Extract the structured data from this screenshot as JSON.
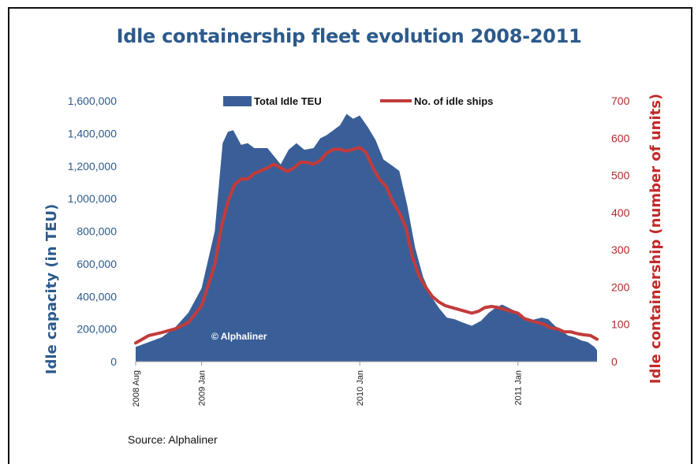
{
  "chart_data": {
    "type": "area",
    "title": "Idle containership fleet evolution 2008-2011",
    "source": "Source: Alphaliner",
    "watermark": "© Alphaliner",
    "ylabel_left": "Idle capacity (in TEU)",
    "ylabel_right": "Idle containership (number of units)",
    "ylim_left": [
      0,
      1600000
    ],
    "ylim_right": [
      0,
      700
    ],
    "yticks_left": [
      "0",
      "200,000",
      "400,000",
      "600,000",
      "800,000",
      "1,000,000",
      "1,200,000",
      "1,400,000",
      "1,600,000"
    ],
    "yticks_right": [
      "0",
      "100",
      "200",
      "300",
      "400",
      "500",
      "600",
      "700"
    ],
    "x_ticks": [
      {
        "label": "2008 Aug",
        "t": 0
      },
      {
        "label": "2009 Jan",
        "t": 5
      },
      {
        "label": "2010 Jan",
        "t": 17
      },
      {
        "label": "2011 Jan",
        "t": 29
      }
    ],
    "x_range": [
      0,
      35
    ],
    "legend": {
      "placement": "top"
    },
    "series": [
      {
        "name": "Total Idle TEU",
        "kind": "area",
        "color": "#3a5f98",
        "points": [
          [
            0,
            90000
          ],
          [
            1,
            120000
          ],
          [
            2,
            150000
          ],
          [
            3,
            210000
          ],
          [
            4,
            300000
          ],
          [
            5,
            450000
          ],
          [
            6,
            800000
          ],
          [
            6.6,
            1340000
          ],
          [
            7,
            1410000
          ],
          [
            7.4,
            1420000
          ],
          [
            8,
            1330000
          ],
          [
            8.5,
            1340000
          ],
          [
            9,
            1310000
          ],
          [
            10,
            1310000
          ],
          [
            10.5,
            1260000
          ],
          [
            11,
            1210000
          ],
          [
            11.6,
            1300000
          ],
          [
            12.2,
            1340000
          ],
          [
            12.8,
            1300000
          ],
          [
            13.5,
            1310000
          ],
          [
            14,
            1370000
          ],
          [
            14.5,
            1390000
          ],
          [
            15,
            1420000
          ],
          [
            15.5,
            1450000
          ],
          [
            16,
            1520000
          ],
          [
            16.5,
            1490000
          ],
          [
            17,
            1510000
          ],
          [
            17.6,
            1440000
          ],
          [
            18.2,
            1360000
          ],
          [
            18.8,
            1240000
          ],
          [
            19.5,
            1200000
          ],
          [
            20,
            1170000
          ],
          [
            20.6,
            960000
          ],
          [
            21.2,
            700000
          ],
          [
            21.8,
            520000
          ],
          [
            22.5,
            390000
          ],
          [
            23,
            330000
          ],
          [
            23.6,
            270000
          ],
          [
            24.2,
            260000
          ],
          [
            24.8,
            240000
          ],
          [
            25.5,
            220000
          ],
          [
            26.2,
            250000
          ],
          [
            26.8,
            300000
          ],
          [
            27.3,
            330000
          ],
          [
            27.8,
            350000
          ],
          [
            28.3,
            330000
          ],
          [
            28.8,
            310000
          ],
          [
            29.3,
            280000
          ],
          [
            29.8,
            250000
          ],
          [
            30.3,
            260000
          ],
          [
            30.8,
            270000
          ],
          [
            31.3,
            260000
          ],
          [
            31.8,
            220000
          ],
          [
            32.3,
            190000
          ],
          [
            32.8,
            160000
          ],
          [
            33.3,
            150000
          ],
          [
            33.8,
            130000
          ],
          [
            34.3,
            120000
          ],
          [
            34.8,
            90000
          ],
          [
            35,
            70000
          ]
        ]
      },
      {
        "name": "No. of idle ships",
        "kind": "line",
        "color": "#c23b3b",
        "points": [
          [
            0,
            50
          ],
          [
            0.5,
            60
          ],
          [
            1,
            70
          ],
          [
            2,
            78
          ],
          [
            3,
            88
          ],
          [
            4,
            105
          ],
          [
            5,
            150
          ],
          [
            6,
            260
          ],
          [
            6.5,
            360
          ],
          [
            7,
            430
          ],
          [
            7.5,
            475
          ],
          [
            8,
            490
          ],
          [
            8.5,
            490
          ],
          [
            9,
            505
          ],
          [
            10,
            520
          ],
          [
            10.5,
            530
          ],
          [
            11,
            520
          ],
          [
            11.5,
            510
          ],
          [
            12,
            520
          ],
          [
            12.5,
            535
          ],
          [
            13,
            535
          ],
          [
            13.5,
            530
          ],
          [
            14,
            540
          ],
          [
            14.5,
            560
          ],
          [
            15,
            570
          ],
          [
            15.5,
            570
          ],
          [
            16,
            565
          ],
          [
            16.5,
            570
          ],
          [
            17,
            575
          ],
          [
            17.5,
            560
          ],
          [
            18,
            520
          ],
          [
            18.5,
            490
          ],
          [
            19,
            470
          ],
          [
            19.5,
            430
          ],
          [
            20,
            400
          ],
          [
            20.5,
            360
          ],
          [
            21,
            280
          ],
          [
            21.5,
            230
          ],
          [
            22,
            200
          ],
          [
            22.5,
            175
          ],
          [
            23,
            160
          ],
          [
            23.5,
            150
          ],
          [
            24,
            145
          ],
          [
            25,
            135
          ],
          [
            25.5,
            130
          ],
          [
            26,
            135
          ],
          [
            26.5,
            145
          ],
          [
            27,
            148
          ],
          [
            27.5,
            145
          ],
          [
            28,
            140
          ],
          [
            28.5,
            135
          ],
          [
            29,
            130
          ],
          [
            29.5,
            115
          ],
          [
            30,
            110
          ],
          [
            30.5,
            105
          ],
          [
            31,
            100
          ],
          [
            31.5,
            90
          ],
          [
            32,
            88
          ],
          [
            32.5,
            80
          ],
          [
            33,
            80
          ],
          [
            33.5,
            75
          ],
          [
            34,
            72
          ],
          [
            34.5,
            70
          ],
          [
            35,
            60
          ]
        ]
      }
    ]
  }
}
